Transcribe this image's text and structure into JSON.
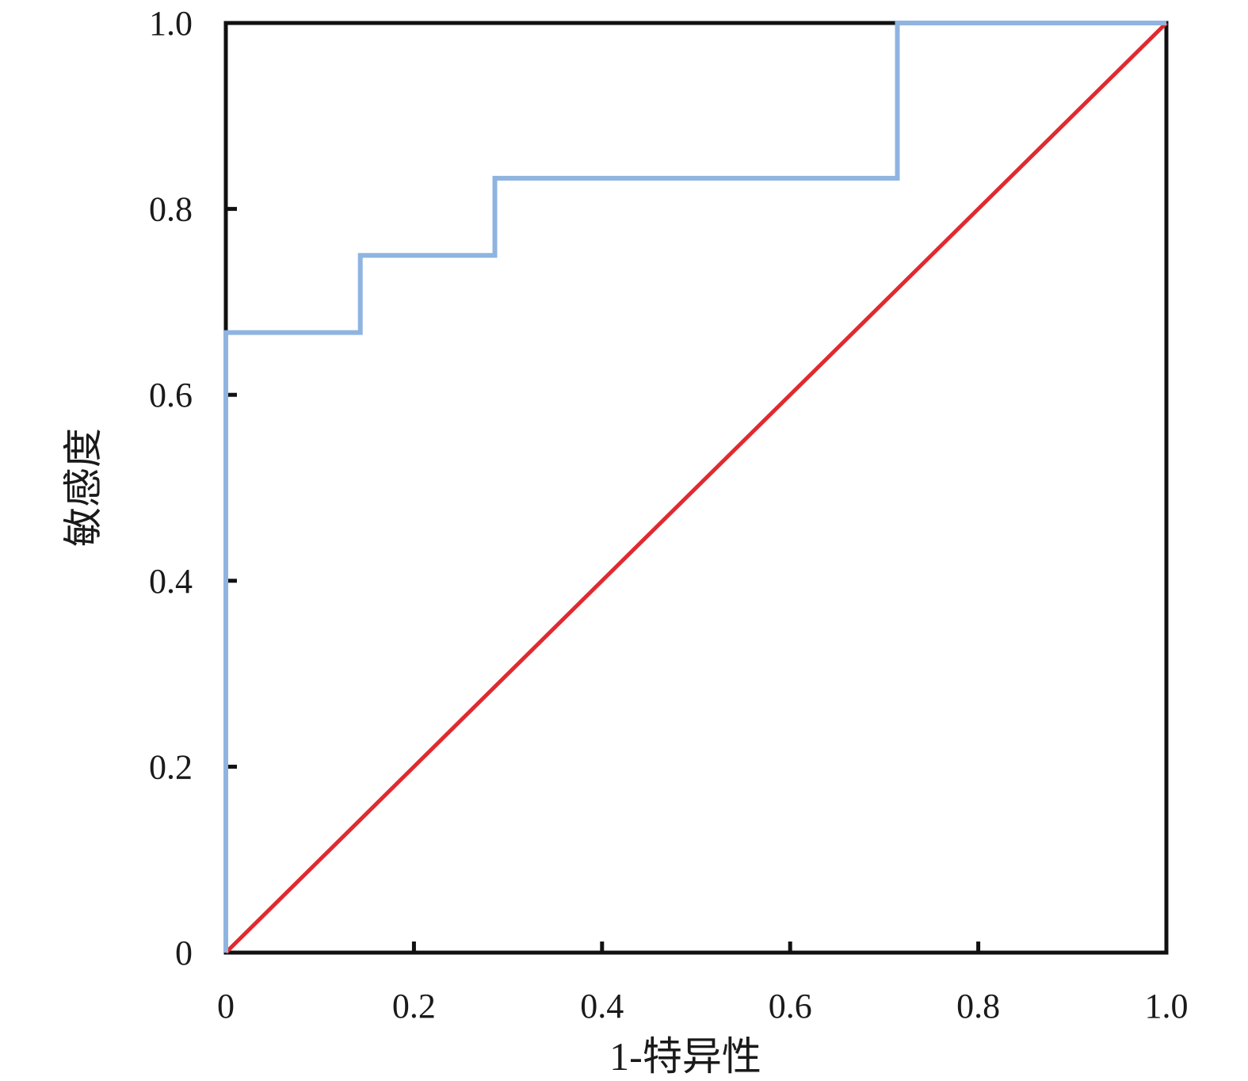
{
  "chart_data": {
    "type": "line",
    "title": "",
    "xlabel": "1-特异性",
    "ylabel": "敏感度",
    "xlim": [
      0,
      1
    ],
    "ylim": [
      0,
      1
    ],
    "xticks": [
      {
        "value": 0,
        "label": "0"
      },
      {
        "value": 0.2,
        "label": "0.2"
      },
      {
        "value": 0.4,
        "label": "0.4"
      },
      {
        "value": 0.6,
        "label": "0.6"
      },
      {
        "value": 0.8,
        "label": "0.8"
      },
      {
        "value": 1.0,
        "label": "1.0"
      }
    ],
    "yticks": [
      {
        "value": 0,
        "label": "0"
      },
      {
        "value": 0.2,
        "label": "0.2"
      },
      {
        "value": 0.4,
        "label": "0.4"
      },
      {
        "value": 0.6,
        "label": "0.6"
      },
      {
        "value": 0.8,
        "label": "0.8"
      },
      {
        "value": 1.0,
        "label": "1.0"
      }
    ],
    "grid": false,
    "legend": "none",
    "series": [
      {
        "style": "step",
        "color": "#8fb4e0",
        "points": [
          [
            0,
            0
          ],
          [
            0,
            0.667
          ],
          [
            0.143,
            0.667
          ],
          [
            0.143,
            0.75
          ],
          [
            0.286,
            0.75
          ],
          [
            0.286,
            0.833
          ],
          [
            0.714,
            0.833
          ],
          [
            0.714,
            1.0
          ],
          [
            1.0,
            1.0
          ]
        ]
      },
      {
        "style": "reference",
        "color": "#e02a2f",
        "points": [
          [
            0,
            0
          ],
          [
            1,
            1
          ]
        ]
      }
    ]
  }
}
